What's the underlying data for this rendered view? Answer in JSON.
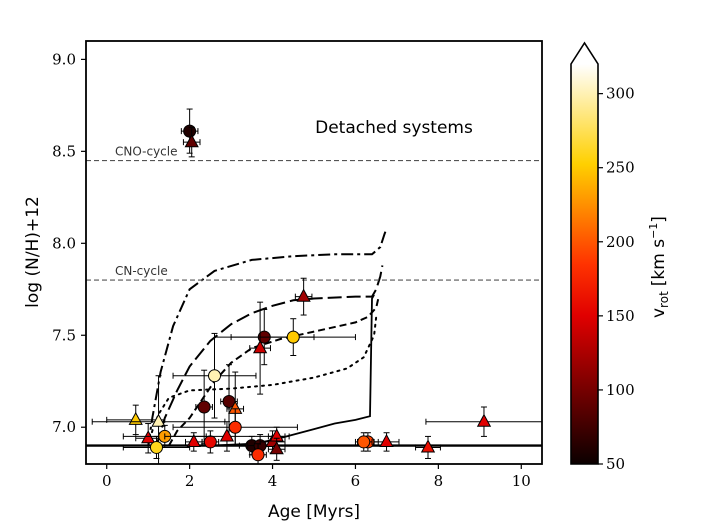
{
  "chart_data": {
    "type": "scatter",
    "xlabel": "Age [Myrs]",
    "ylabel": "log (N/H)+12",
    "xlim": [
      -0.5,
      10.5
    ],
    "ylim": [
      6.8,
      9.1
    ],
    "xticks": [
      0,
      2,
      4,
      6,
      8,
      10
    ],
    "yticks": [
      7.0,
      7.5,
      8.0,
      8.5,
      9.0
    ],
    "xtick_labels": [
      "0",
      "2",
      "4",
      "6",
      "8",
      "10"
    ],
    "ytick_labels": [
      "7.0",
      "7.5",
      "8.0",
      "8.5",
      "9.0"
    ],
    "annotation": "Detached systems",
    "reference_lines": [
      {
        "label": "CNO-cycle",
        "y": 8.45
      },
      {
        "label": "CN-cycle",
        "y": 7.8
      }
    ],
    "colorbar": {
      "label_html": "v_rot [km s^-1]",
      "label_main": "v",
      "label_sub": "rot",
      "label_units": "[km s",
      "label_exp": "−1",
      "label_close": "]",
      "range": [
        50,
        320
      ],
      "ticks": [
        50,
        100,
        150,
        200,
        250,
        300
      ],
      "tick_labels": [
        "50",
        "100",
        "150",
        "200",
        "250",
        "300"
      ],
      "colormap": "hot",
      "extend": "max"
    },
    "baseline_y": 6.9,
    "tracks": [
      {
        "name": "dash-dot",
        "style": "dashdot",
        "width": 2,
        "points": [
          [
            1.0,
            6.9
          ],
          [
            1.1,
            7.05
          ],
          [
            1.3,
            7.3
          ],
          [
            1.6,
            7.55
          ],
          [
            2.0,
            7.75
          ],
          [
            2.6,
            7.85
          ],
          [
            3.5,
            7.91
          ],
          [
            4.5,
            7.93
          ],
          [
            5.5,
            7.94
          ],
          [
            6.4,
            7.94
          ],
          [
            6.5,
            7.96
          ],
          [
            6.6,
            7.98
          ],
          [
            6.7,
            8.05
          ],
          [
            6.75,
            8.08
          ]
        ]
      },
      {
        "name": "long-dash",
        "style": "longdash",
        "width": 2,
        "points": [
          [
            1.2,
            6.9
          ],
          [
            1.4,
            7.05
          ],
          [
            1.7,
            7.2
          ],
          [
            2.0,
            7.33
          ],
          [
            2.5,
            7.47
          ],
          [
            3.0,
            7.56
          ],
          [
            3.5,
            7.62
          ],
          [
            4.0,
            7.66
          ],
          [
            4.5,
            7.69
          ],
          [
            5.0,
            7.7
          ],
          [
            6.0,
            7.71
          ],
          [
            6.4,
            7.71
          ],
          [
            6.5,
            7.75
          ],
          [
            6.6,
            7.82
          ],
          [
            6.65,
            7.88
          ]
        ]
      },
      {
        "name": "short-dash",
        "style": "dashed",
        "width": 2,
        "points": [
          [
            1.5,
            6.9
          ],
          [
            1.7,
            6.98
          ],
          [
            2.0,
            7.05
          ],
          [
            2.3,
            7.15
          ],
          [
            2.6,
            7.25
          ],
          [
            3.0,
            7.35
          ],
          [
            3.5,
            7.43
          ],
          [
            4.2,
            7.48
          ],
          [
            5.0,
            7.52
          ],
          [
            5.6,
            7.55
          ],
          [
            6.0,
            7.57
          ],
          [
            6.3,
            7.6
          ],
          [
            6.5,
            7.65
          ],
          [
            6.55,
            7.7
          ]
        ]
      },
      {
        "name": "dotted",
        "style": "dotted",
        "width": 2,
        "points": [
          [
            1.0,
            6.9
          ],
          [
            1.1,
            6.98
          ],
          [
            1.25,
            7.07
          ],
          [
            1.5,
            7.16
          ],
          [
            2.0,
            7.2
          ],
          [
            3.0,
            7.21
          ],
          [
            4.0,
            7.23
          ],
          [
            5.0,
            7.27
          ],
          [
            5.8,
            7.32
          ],
          [
            6.2,
            7.38
          ],
          [
            6.45,
            7.5
          ],
          [
            6.5,
            7.6
          ]
        ]
      },
      {
        "name": "solid-thin",
        "style": "solid",
        "width": 1.8,
        "points": [
          [
            1.4,
            6.9
          ],
          [
            2.5,
            6.9
          ],
          [
            3.5,
            6.91
          ],
          [
            4.0,
            6.93
          ],
          [
            4.5,
            6.96
          ],
          [
            5.0,
            6.99
          ],
          [
            5.5,
            7.02
          ],
          [
            6.0,
            7.04
          ],
          [
            6.35,
            7.06
          ],
          [
            6.4,
            7.7
          ],
          [
            6.45,
            7.72
          ]
        ]
      }
    ],
    "points": [
      {
        "x": 2.0,
        "y": 8.61,
        "xerr": 0.2,
        "yerr": 0.12,
        "v": 60,
        "marker": "circle"
      },
      {
        "x": 2.05,
        "y": 8.55,
        "xerr": 0.2,
        "yerr": 0.08,
        "v": 90,
        "marker": "triangle"
      },
      {
        "x": 4.75,
        "y": 7.71,
        "xerr": 0.2,
        "yerr": 0.1,
        "v": 120,
        "marker": "triangle"
      },
      {
        "x": 3.8,
        "y": 7.49,
        "xerr": 1.2,
        "yerr": 0.15,
        "v": 90,
        "marker": "circle"
      },
      {
        "x": 4.5,
        "y": 7.49,
        "xerr": 1.5,
        "yerr": 0.1,
        "v": 250,
        "marker": "circle"
      },
      {
        "x": 3.7,
        "y": 7.43,
        "xerr": 0.25,
        "yerr": 0.25,
        "v": 140,
        "marker": "triangle"
      },
      {
        "x": 2.6,
        "y": 7.28,
        "xerr": 1.0,
        "yerr": 0.23,
        "v": 300,
        "marker": "circle"
      },
      {
        "x": 2.95,
        "y": 7.14,
        "xerr": 0.2,
        "yerr": 0.2,
        "v": 85,
        "marker": "circle"
      },
      {
        "x": 2.35,
        "y": 7.11,
        "xerr": 0.2,
        "yerr": 0.2,
        "v": 90,
        "marker": "circle"
      },
      {
        "x": 3.1,
        "y": 7.1,
        "xerr": 0.2,
        "yerr": 0.2,
        "v": 200,
        "marker": "triangle"
      },
      {
        "x": 0.7,
        "y": 7.04,
        "xerr": 0.7,
        "yerr": 0.08,
        "v": 250,
        "marker": "triangle"
      },
      {
        "x": 1.25,
        "y": 7.03,
        "xerr": 1.6,
        "yerr": 0.25,
        "v": 300,
        "marker": "triangle"
      },
      {
        "x": 9.1,
        "y": 7.03,
        "xerr": 1.4,
        "yerr": 0.08,
        "v": 150,
        "marker": "triangle"
      },
      {
        "x": 3.1,
        "y": 7.0,
        "xerr": 1.5,
        "yerr": 0.1,
        "v": 180,
        "marker": "circle"
      },
      {
        "x": 1.0,
        "y": 6.94,
        "xerr": 0.3,
        "yerr": 0.08,
        "v": 150,
        "marker": "triangle"
      },
      {
        "x": 1.4,
        "y": 6.95,
        "xerr": 1.0,
        "yerr": 0.06,
        "v": 230,
        "marker": "circle"
      },
      {
        "x": 2.1,
        "y": 6.92,
        "xerr": 0.2,
        "yerr": 0.05,
        "v": 150,
        "marker": "triangle"
      },
      {
        "x": 2.5,
        "y": 6.92,
        "xerr": 0.2,
        "yerr": 0.06,
        "v": 155,
        "marker": "circle"
      },
      {
        "x": 2.9,
        "y": 6.95,
        "xerr": 1.5,
        "yerr": 0.08,
        "v": 150,
        "marker": "triangle"
      },
      {
        "x": 3.5,
        "y": 6.9,
        "xerr": 0.3,
        "yerr": 0.05,
        "v": 60,
        "marker": "circle"
      },
      {
        "x": 3.7,
        "y": 6.9,
        "xerr": 0.3,
        "yerr": 0.06,
        "v": 70,
        "marker": "circle"
      },
      {
        "x": 4.0,
        "y": 6.92,
        "xerr": 0.3,
        "yerr": 0.06,
        "v": 120,
        "marker": "triangle"
      },
      {
        "x": 4.1,
        "y": 6.95,
        "xerr": 0.2,
        "yerr": 0.05,
        "v": 150,
        "marker": "triangle"
      },
      {
        "x": 4.1,
        "y": 6.88,
        "xerr": 0.2,
        "yerr": 0.06,
        "v": 100,
        "marker": "triangle"
      },
      {
        "x": 3.65,
        "y": 6.85,
        "xerr": 0.2,
        "yerr": 0.06,
        "v": 180,
        "marker": "circle"
      },
      {
        "x": 1.2,
        "y": 6.89,
        "xerr": 0.8,
        "yerr": 0.06,
        "v": 260,
        "marker": "circle"
      },
      {
        "x": 6.3,
        "y": 6.92,
        "xerr": 0.25,
        "yerr": 0.05,
        "v": 190,
        "marker": "circle"
      },
      {
        "x": 6.2,
        "y": 6.92,
        "xerr": 0.2,
        "yerr": 0.05,
        "v": 200,
        "marker": "circle"
      },
      {
        "x": 6.75,
        "y": 6.92,
        "xerr": 0.3,
        "yerr": 0.05,
        "v": 150,
        "marker": "triangle"
      },
      {
        "x": 7.75,
        "y": 6.89,
        "xerr": 0.3,
        "yerr": 0.06,
        "v": 160,
        "marker": "triangle"
      }
    ]
  }
}
